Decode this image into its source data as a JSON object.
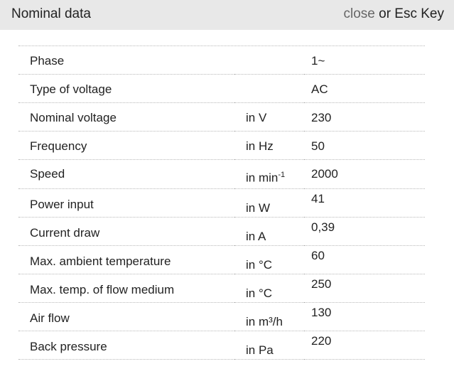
{
  "header": {
    "title": "Nominal data",
    "close_link": "close",
    "close_suffix": " or Esc Key"
  },
  "rows": [
    {
      "label": "Phase",
      "unit": "",
      "value": "1~"
    },
    {
      "label": "Type of voltage",
      "unit": "",
      "value": "AC"
    },
    {
      "label": "Nominal voltage",
      "unit": "in V",
      "value": "230"
    },
    {
      "label": "Frequency",
      "unit": "in Hz",
      "value": "50"
    },
    {
      "label": "Speed",
      "unit": "in min",
      "unit_sup": "-1",
      "value": "2000"
    },
    {
      "label": "Power input",
      "unit": "in W",
      "value": "41"
    },
    {
      "label": "Current draw",
      "unit": "in A",
      "value": "0,39"
    },
    {
      "label": "Max. ambient temperature",
      "unit": "in °C",
      "value": "60"
    },
    {
      "label": "Max. temp. of flow medium",
      "unit": "in °C",
      "value": "250"
    },
    {
      "label": "Air flow",
      "unit": "in m³/h",
      "value": "130"
    },
    {
      "label": "Back pressure",
      "unit": "in Pa",
      "value": "220"
    }
  ]
}
